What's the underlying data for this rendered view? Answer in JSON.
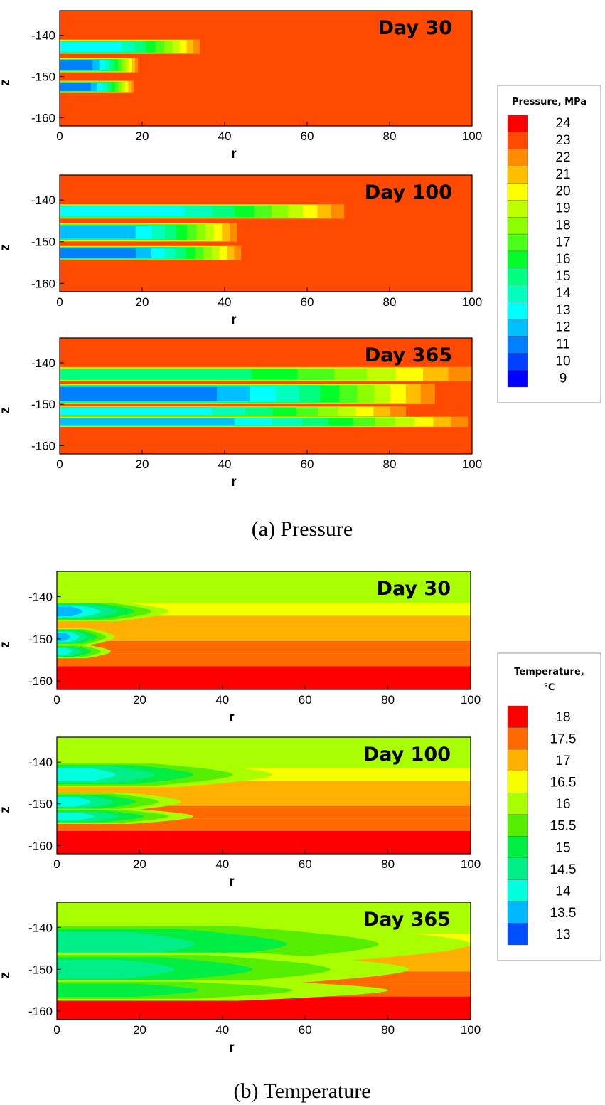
{
  "chart_data": [
    {
      "type": "heatmap",
      "group": "pressure",
      "caption": "(a) Pressure",
      "xlabel": "r",
      "ylabel": "z",
      "xlim": [
        0,
        100
      ],
      "ylim": [
        -162,
        -134
      ],
      "xticks": [
        0,
        20,
        40,
        60,
        80,
        100
      ],
      "yticks": [
        -140,
        -150,
        -160
      ],
      "background_level": 23,
      "legend": {
        "title": "Pressure, MPa",
        "levels": [
          24,
          23,
          22,
          21,
          20,
          19,
          18,
          17,
          16,
          15,
          14,
          13,
          12,
          11,
          10,
          9
        ],
        "colors": [
          "#ff0000",
          "#ff4a00",
          "#ff8c00",
          "#ffbf00",
          "#ffff00",
          "#bfff00",
          "#8cff00",
          "#4aff1a",
          "#00ff2a",
          "#00ff80",
          "#00ffbf",
          "#00ffff",
          "#00bfff",
          "#0080ff",
          "#0040ff",
          "#0000ff"
        ]
      },
      "panels": [
        {
          "label": "Day 30",
          "bands": [
            {
              "z": [
                -141.0,
                -144.5
              ],
              "extent": 34,
              "min_level": 13
            },
            {
              "z": [
                -145.5,
                -149.0
              ],
              "extent": 19,
              "min_level": 11
            },
            {
              "z": [
                -151.0,
                -154.0
              ],
              "extent": 18,
              "min_level": 11
            }
          ]
        },
        {
          "label": "Day 100",
          "bands": [
            {
              "z": [
                -141.0,
                -144.5
              ],
              "extent": 69,
              "min_level": 13
            },
            {
              "z": [
                -145.5,
                -150.0
              ],
              "extent": 43,
              "min_level": 12
            },
            {
              "z": [
                -151.0,
                -154.5
              ],
              "extent": 44,
              "min_level": 11
            }
          ]
        },
        {
          "label": "Day 365",
          "bands": [
            {
              "z": [
                -141.0,
                -144.5
              ],
              "extent": 100,
              "min_level": 15
            },
            {
              "z": [
                -145.0,
                -150.0
              ],
              "extent": 91,
              "min_level": 11
            },
            {
              "z": [
                -150.5,
                -153.0
              ],
              "extent": 84,
              "min_level": 13
            },
            {
              "z": [
                -153.0,
                -155.5
              ],
              "extent": 99,
              "min_level": 12
            }
          ]
        }
      ]
    },
    {
      "type": "heatmap",
      "group": "temperature",
      "caption": "(b) Temperature",
      "xlabel": "r",
      "ylabel": "z",
      "xlim": [
        0,
        100
      ],
      "ylim": [
        -162,
        -134
      ],
      "xticks": [
        0,
        20,
        40,
        60,
        80,
        100
      ],
      "yticks": [
        -140,
        -150,
        -160
      ],
      "legend": {
        "title_line1": "Temperature,",
        "title_line2": "℃",
        "levels": [
          18,
          17.5,
          17,
          16.5,
          16,
          15.5,
          15,
          14.5,
          14,
          13.5,
          13
        ],
        "colors": [
          "#ff0000",
          "#ff6a00",
          "#ffb000",
          "#f5ff00",
          "#a8ff00",
          "#55ee00",
          "#00ee44",
          "#00ee88",
          "#00ffdd",
          "#00b8ff",
          "#0050ff"
        ]
      },
      "background_layers": [
        {
          "z": [
            -134,
            -136
          ],
          "level": 16
        },
        {
          "z": [
            -136,
            -138.5
          ],
          "level": 16
        },
        {
          "z": [
            -138.5,
            -141.5
          ],
          "level": 16
        },
        {
          "z": [
            -141.5,
            -144.5
          ],
          "level": 16.5
        },
        {
          "z": [
            -144.5,
            -147.5
          ],
          "level": 17
        },
        {
          "z": [
            -147.5,
            -150.5
          ],
          "level": 17
        },
        {
          "z": [
            -150.5,
            -153.5
          ],
          "level": 17.5
        },
        {
          "z": [
            -153.5,
            -156.5
          ],
          "level": 17.5
        },
        {
          "z": [
            -156.5,
            -162
          ],
          "level": 18
        }
      ],
      "panels": [
        {
          "label": "Day 30",
          "plumes": [
            {
              "z_center": -143.5,
              "half_height": 2.3,
              "extent": 27,
              "min_level": 13.5
            },
            {
              "z_center": -149.5,
              "half_height": 2.0,
              "extent": 14,
              "min_level": 13.5
            },
            {
              "z_center": -153.0,
              "half_height": 1.6,
              "extent": 13,
              "min_level": 14
            }
          ]
        },
        {
          "label": "Day 100",
          "plumes": [
            {
              "z_center": -143.0,
              "half_height": 3.0,
              "extent": 52,
              "min_level": 14
            },
            {
              "z_center": -149.5,
              "half_height": 2.2,
              "extent": 30,
              "min_level": 14
            },
            {
              "z_center": -153.0,
              "half_height": 1.8,
              "extent": 33,
              "min_level": 14
            }
          ]
        },
        {
          "label": "Day 365",
          "plumes": [
            {
              "z_center": -144.0,
              "half_height": 5.0,
              "extent": 100,
              "min_level": 14.5
            },
            {
              "z_center": -150.0,
              "half_height": 4.0,
              "extent": 85,
              "min_level": 14.5
            },
            {
              "z_center": -155.0,
              "half_height": 2.5,
              "extent": 80,
              "min_level": 15
            }
          ]
        }
      ]
    }
  ]
}
